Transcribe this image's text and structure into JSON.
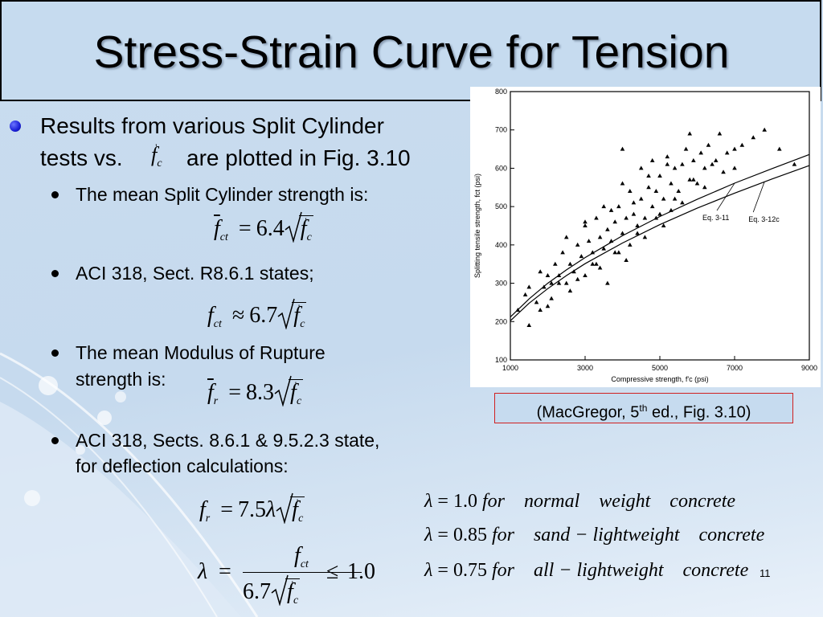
{
  "slide": {
    "title": "Stress-Strain Curve for Tension",
    "page_number": "11"
  },
  "bullets": {
    "b1_line1": "Results from various Split Cylinder",
    "b1_line2a": "tests vs.",
    "b1_line2b": "are plotted in Fig. 3.10",
    "b2": "The mean Split Cylinder strength is:",
    "b3": "ACI 318, Sect. R8.6.1 states;",
    "b4_line1": "The mean Modulus of Rupture",
    "b4_line2": "strength is:",
    "b5_line1": "ACI 318, Sects. 8.6.1 & 9.5.2.3 state,",
    "b5_line2": "for deflection calculations:"
  },
  "equations": {
    "eq_mean_split": {
      "lhs_sym": "f",
      "lhs_sub": "ct",
      "op": "=",
      "coef": "6.4"
    },
    "eq_aci_split": {
      "lhs_sym": "f",
      "lhs_sub": "ct",
      "op": "≈",
      "coef": "6.7"
    },
    "eq_rupture": {
      "lhs_sym": "f",
      "lhs_sub": "r",
      "op": "=",
      "coef": "8.3"
    },
    "eq_deflection": {
      "lhs_sym": "f",
      "lhs_sub": "r",
      "op": "=",
      "coef": "7.5",
      "factor": "λ"
    },
    "eq_lambda": {
      "lhs": "λ",
      "num_sym": "f",
      "num_sub": "ct",
      "den_coef": "6.7",
      "rel": "≤",
      "limit": "1.0"
    },
    "root_sym": "f",
    "root_sub": "c",
    "prime": "'"
  },
  "lambda_table": [
    {
      "lhs": "λ",
      "eq": "=",
      "value": "1.0",
      "words": "for    normal    weight    concrete"
    },
    {
      "lhs": "λ",
      "eq": "=",
      "value": "0.85",
      "words": "for    sand − lightweight    concrete"
    },
    {
      "lhs": "λ",
      "eq": "=",
      "value": "0.75",
      "words": "for    all − lightweight    concrete"
    }
  ],
  "caption": {
    "text_before": "(MacGregor, 5",
    "sup": "th",
    "text_after": "  ed., Fig. 3.10)"
  },
  "colors": {
    "bullet_blue": "#1a1fd6",
    "caption_border": "#d02020",
    "background": "#c6dbef"
  },
  "chart_data": {
    "type": "scatter",
    "title": "",
    "xlabel": "Compressive strength, f'c (psi)",
    "ylabel": "Splitting tensile strength, fct (psi)",
    "xlim": [
      1000,
      9000
    ],
    "ylim": [
      100,
      800
    ],
    "x_ticks": [
      "1000",
      "3000",
      "5000",
      "7000",
      "9000"
    ],
    "y_ticks": [
      "100",
      "200",
      "300",
      "400",
      "500",
      "600",
      "700",
      "800"
    ],
    "grid": false,
    "series": [
      {
        "name": "Eq. 3-11",
        "kind": "line",
        "formula": "6.7*sqrt(x)",
        "x": [
          1000,
          1500,
          2000,
          2500,
          3000,
          4000,
          5000,
          6000,
          7000,
          8000,
          9000
        ],
        "y": [
          212,
          259,
          300,
          335,
          367,
          424,
          474,
          519,
          561,
          599,
          636
        ]
      },
      {
        "name": "Eq. 3-12c",
        "kind": "line",
        "formula": "6.4*sqrt(x)",
        "x": [
          1000,
          1500,
          2000,
          2500,
          3000,
          4000,
          5000,
          6000,
          7000,
          8000,
          9000
        ],
        "y": [
          202,
          248,
          286,
          320,
          351,
          405,
          453,
          496,
          535,
          572,
          607
        ]
      },
      {
        "name": "",
        "kind": "points",
        "x": [
          1200,
          1400,
          1500,
          1700,
          1800,
          1900,
          2000,
          2100,
          2100,
          2200,
          2300,
          2400,
          2500,
          2500,
          2600,
          2700,
          2800,
          2900,
          3000,
          3000,
          3100,
          3200,
          3300,
          3300,
          3400,
          3500,
          3500,
          3600,
          3700,
          3800,
          3800,
          3900,
          4000,
          4000,
          4100,
          4200,
          4200,
          4300,
          4400,
          4500,
          4500,
          4600,
          4700,
          4800,
          4800,
          4900,
          5000,
          5000,
          5100,
          5200,
          5300,
          5300,
          5400,
          5500,
          5600,
          5700,
          5800,
          5900,
          6000,
          6100,
          6200,
          6300,
          6500,
          6600,
          6800,
          7000,
          7200,
          7500,
          7800,
          8200,
          8600,
          1500,
          2000,
          2600,
          3200,
          3600,
          4100,
          4600,
          5100,
          5600,
          6200,
          6700,
          2800,
          3400,
          3900,
          4400,
          4900,
          5400,
          5900,
          6400,
          7000,
          3000,
          3700,
          4300,
          4700,
          5200,
          5800,
          1800,
          2300,
          4000
        ],
        "y": [
          230,
          270,
          290,
          250,
          330,
          290,
          320,
          300,
          260,
          350,
          320,
          380,
          300,
          420,
          350,
          330,
          400,
          370,
          320,
          450,
          410,
          380,
          350,
          470,
          420,
          390,
          500,
          440,
          410,
          460,
          380,
          500,
          430,
          560,
          470,
          400,
          540,
          480,
          450,
          520,
          600,
          470,
          550,
          500,
          620,
          540,
          480,
          580,
          520,
          630,
          560,
          490,
          600,
          540,
          610,
          650,
          570,
          620,
          560,
          640,
          600,
          660,
          620,
          690,
          640,
          600,
          660,
          680,
          700,
          650,
          610,
          190,
          240,
          280,
          350,
          300,
          360,
          420,
          450,
          510,
          550,
          590,
          310,
          340,
          380,
          430,
          470,
          520,
          570,
          610,
          650,
          460,
          490,
          510,
          580,
          610,
          690,
          230,
          300,
          650
        ]
      }
    ]
  }
}
